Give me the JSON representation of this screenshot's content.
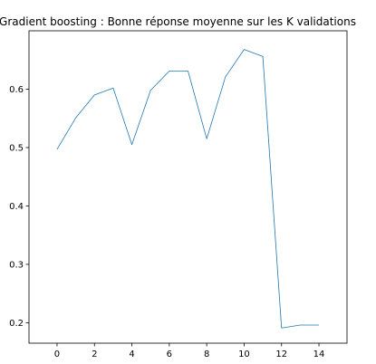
{
  "chart_data": {
    "type": "line",
    "title": "Gradient boosting : Bonne réponse moyenne sur les K validations",
    "xlabel": "",
    "ylabel": "",
    "xlim": [
      -1.5,
      15.5
    ],
    "ylim": [
      0.165,
      0.7
    ],
    "xticks": [
      0,
      2,
      4,
      6,
      8,
      10,
      12,
      14
    ],
    "yticks": [
      0.2,
      0.3,
      0.4,
      0.5,
      0.6
    ],
    "xtick_labels": [
      "0",
      "2",
      "4",
      "6",
      "8",
      "10",
      "12",
      "14"
    ],
    "ytick_labels": [
      "0.2",
      "0.3",
      "0.4",
      "0.5",
      "0.6"
    ],
    "grid": false,
    "series": [
      {
        "color": "#1f77b4",
        "x": [
          0,
          1,
          2,
          3,
          4,
          5,
          6,
          7,
          8,
          9,
          10,
          11,
          12,
          13,
          14
        ],
        "y": [
          0.497,
          0.551,
          0.59,
          0.602,
          0.505,
          0.598,
          0.631,
          0.631,
          0.515,
          0.621,
          0.668,
          0.656,
          0.191,
          0.196,
          0.196
        ]
      }
    ]
  }
}
